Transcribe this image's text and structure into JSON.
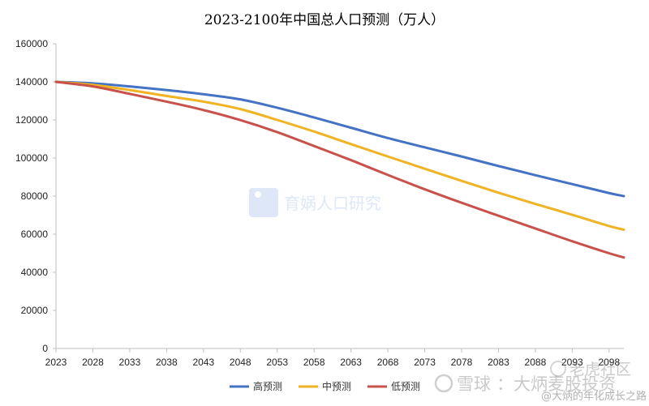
{
  "chart_data": {
    "type": "line",
    "title": "2023-2100年中国总人口预测（万人）",
    "xlabel": "",
    "ylabel": "",
    "x_ticks": [
      "2023",
      "2028",
      "2033",
      "2038",
      "2043",
      "2048",
      "2053",
      "2058",
      "2063",
      "2068",
      "2073",
      "2078",
      "2083",
      "2088",
      "2093",
      "2098"
    ],
    "xlim": [
      2023,
      2100
    ],
    "ylim": [
      0,
      160000
    ],
    "y_ticks": [
      "0",
      "20000",
      "40000",
      "60000",
      "80000",
      "100000",
      "120000",
      "140000",
      "160000"
    ],
    "grid": false,
    "legend_position": "bottom",
    "series": [
      {
        "name": "高预测",
        "color": "#4472C4",
        "x": [
          2023,
          2028,
          2033,
          2038,
          2043,
          2048,
          2053,
          2058,
          2063,
          2068,
          2073,
          2078,
          2083,
          2088,
          2093,
          2098,
          2100
        ],
        "values": [
          140000,
          139200,
          137600,
          135700,
          133500,
          130800,
          126400,
          121300,
          115900,
          110500,
          105600,
          100800,
          95800,
          91000,
          86300,
          81600,
          80000
        ]
      },
      {
        "name": "中预测",
        "color": "#F0B323",
        "x": [
          2023,
          2028,
          2033,
          2038,
          2043,
          2048,
          2053,
          2058,
          2063,
          2068,
          2073,
          2078,
          2083,
          2088,
          2093,
          2098,
          2100
        ],
        "values": [
          140000,
          138400,
          135700,
          132600,
          129600,
          125700,
          120000,
          113900,
          107300,
          100800,
          94400,
          88000,
          81800,
          75900,
          70200,
          64300,
          62400
        ]
      },
      {
        "name": "低预测",
        "color": "#C9514B",
        "x": [
          2023,
          2028,
          2033,
          2038,
          2043,
          2048,
          2053,
          2058,
          2063,
          2068,
          2073,
          2078,
          2083,
          2088,
          2093,
          2098,
          2100
        ],
        "values": [
          140000,
          137600,
          133700,
          129600,
          125200,
          119900,
          113600,
          106300,
          98900,
          91100,
          83600,
          76500,
          69700,
          63000,
          56300,
          50000,
          47800
        ]
      }
    ]
  },
  "watermarks": {
    "center": "育娲人口研究",
    "tiger": "老虎社区",
    "xueqiu_name": "雪球",
    "xueqiu_user": "：大炳麦股投资",
    "author": "@大炳的年化成长之路"
  }
}
